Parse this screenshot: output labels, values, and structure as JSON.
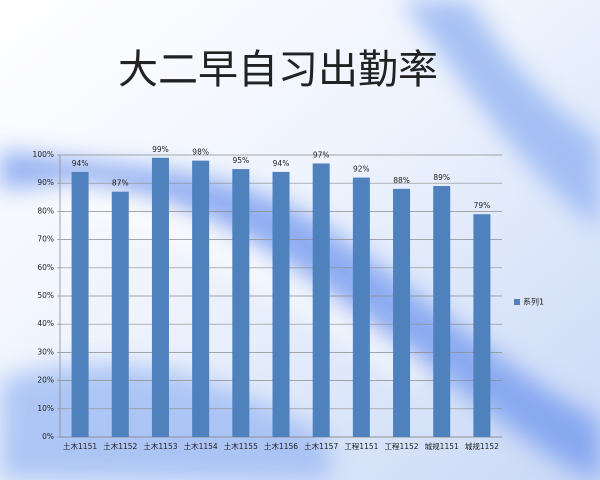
{
  "chart_data": {
    "type": "bar",
    "title": "大二早自习出勤率",
    "categories": [
      "土木1151",
      "土木1152",
      "土木1153",
      "土木1154",
      "土木1155",
      "土木1156",
      "土木1157",
      "工程1151",
      "工程1152",
      "城规1151",
      "城规1152"
    ],
    "series": [
      {
        "name": "系列1",
        "color": "#4f81bd",
        "values": [
          94,
          87,
          99,
          98,
          95,
          94,
          97,
          92,
          88,
          89,
          79
        ],
        "value_labels": [
          "94%",
          "87%",
          "99%",
          "98%",
          "95%",
          "94%",
          "97%",
          "92%",
          "88%",
          "89%",
          "79%"
        ]
      }
    ],
    "ylim": [
      0,
      100
    ],
    "yticks": [
      {
        "value": 0,
        "label": "0%"
      },
      {
        "value": 10,
        "label": "10%"
      },
      {
        "value": 20,
        "label": "20%"
      },
      {
        "value": 30,
        "label": "30%"
      },
      {
        "value": 40,
        "label": "40%"
      },
      {
        "value": 50,
        "label": "50%"
      },
      {
        "value": 60,
        "label": "60%"
      },
      {
        "value": 70,
        "label": "70%"
      },
      {
        "value": 80,
        "label": "80%"
      },
      {
        "value": 90,
        "label": "90%"
      },
      {
        "value": 100,
        "label": "100%"
      }
    ],
    "grid": true,
    "legend": "right"
  }
}
